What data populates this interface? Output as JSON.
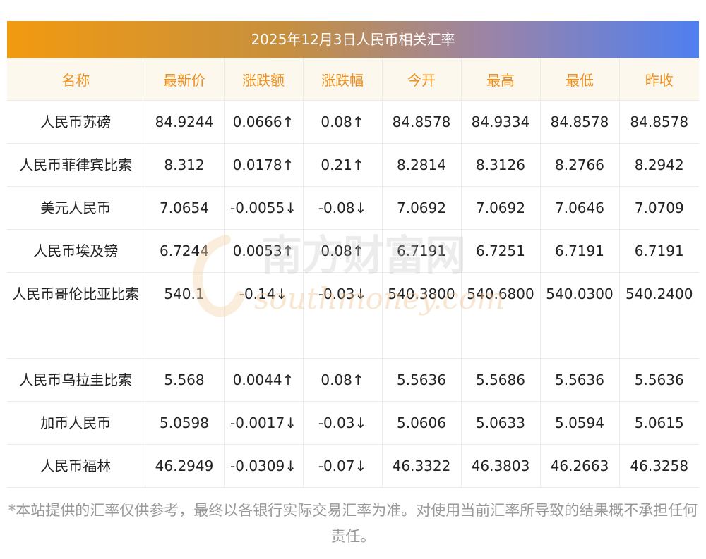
{
  "title": "2025年12月3日人民币相关汇率",
  "columns": [
    "名称",
    "最新价",
    "涨跌额",
    "涨跌幅",
    "今开",
    "最高",
    "最低",
    "昨收"
  ],
  "rows": [
    {
      "name": "人民币苏磅",
      "latest": "84.9244",
      "change": "0.0666↑",
      "pct": "0.08↑",
      "open": "84.8578",
      "high": "84.9334",
      "low": "84.8578",
      "prev": "84.8578",
      "dir": "up"
    },
    {
      "name": "人民币菲律宾比索",
      "latest": "8.312",
      "change": "0.0178↑",
      "pct": "0.21↑",
      "open": "8.2814",
      "high": "8.3126",
      "low": "8.2766",
      "prev": "8.2942",
      "dir": "up"
    },
    {
      "name": "美元人民币",
      "latest": "7.0654",
      "change": "-0.0055↓",
      "pct": "-0.08↓",
      "open": "7.0692",
      "high": "7.0692",
      "low": "7.0646",
      "prev": "7.0709",
      "dir": "down"
    },
    {
      "name": "人民币埃及镑",
      "latest": "6.7244",
      "change": "0.0053↑",
      "pct": "0.08↑",
      "open": "6.7191",
      "high": "6.7251",
      "low": "6.7191",
      "prev": "6.7191",
      "dir": "up"
    },
    {
      "name": "人民币哥伦比亚比索",
      "latest": "540.1",
      "change": "-0.14↓",
      "pct": "-0.03↓",
      "open": "540.3800",
      "high": "540.6800",
      "low": "540.0300",
      "prev": "540.2400",
      "dir": "down"
    },
    {
      "name": "人民币乌拉圭比索",
      "latest": "5.568",
      "change": "0.0044↑",
      "pct": "0.08↑",
      "open": "5.5636",
      "high": "5.5686",
      "low": "5.5636",
      "prev": "5.5636",
      "dir": "up"
    },
    {
      "name": "加币人民币",
      "latest": "5.0598",
      "change": "-0.0017↓",
      "pct": "-0.03↓",
      "open": "5.0606",
      "high": "5.0633",
      "low": "5.0594",
      "prev": "5.0615",
      "dir": "down"
    },
    {
      "name": "人民币福林",
      "latest": "46.2949",
      "change": "-0.0309↓",
      "pct": "-0.07↓",
      "open": "46.3322",
      "high": "46.3803",
      "low": "46.2663",
      "prev": "46.3258",
      "dir": "down"
    }
  ],
  "colors": {
    "up": "#e8111a",
    "down": "#1a8a14",
    "header_text": "#ef8f1c"
  },
  "watermark": {
    "cn": "南方财富网",
    "en": "southmoney.com"
  },
  "footer": "*本站提供的汇率仅供参考，最终以各银行实际交易汇率为准。对使用当前汇率所导致的结果概不承担任何责任。"
}
